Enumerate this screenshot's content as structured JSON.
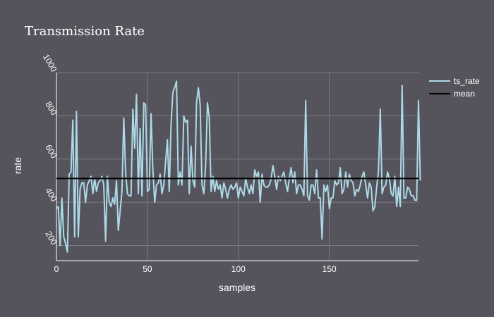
{
  "colors": {
    "background": "#55545c",
    "ts_rate": "#add8e6",
    "mean": "#000000",
    "grid": "#7b7a80",
    "text": "#ffffff"
  },
  "chart_data": {
    "type": "line",
    "title": "Transmission Rate",
    "xlabel": "samples",
    "ylabel": "rate",
    "xlim": [
      0,
      199
    ],
    "ylim": [
      130,
      1000
    ],
    "xticks": [
      0,
      50,
      100,
      150
    ],
    "yticks": [
      200,
      400,
      600,
      800,
      1000
    ],
    "grid": true,
    "legend_position": "top-right",
    "series": [
      {
        "name": "ts_rate",
        "values": [
          370,
          380,
          200,
          420,
          240,
          210,
          170,
          530,
          540,
          780,
          240,
          820,
          240,
          460,
          490,
          490,
          400,
          480,
          500,
          520,
          440,
          510,
          450,
          490,
          500,
          520,
          480,
          220,
          520,
          400,
          380,
          420,
          390,
          500,
          270,
          360,
          450,
          790,
          540,
          440,
          430,
          430,
          830,
          650,
          900,
          440,
          740,
          430,
          860,
          850,
          450,
          460,
          810,
          550,
          400,
          480,
          490,
          530,
          440,
          480,
          590,
          690,
          450,
          760,
          910,
          930,
          960,
          480,
          540,
          480,
          800,
          770,
          780,
          440,
          660,
          500,
          470,
          860,
          930,
          850,
          480,
          440,
          570,
          860,
          790,
          450,
          520,
          450,
          500,
          460,
          480,
          420,
          490,
          460,
          420,
          460,
          480,
          460,
          470,
          490,
          420,
          470,
          450,
          430,
          510,
          470,
          440,
          480,
          440,
          550,
          520,
          540,
          400,
          530,
          480,
          470,
          470,
          480,
          510,
          570,
          520,
          460,
          520,
          500,
          520,
          540,
          490,
          450,
          510,
          560,
          490,
          540,
          440,
          480,
          480,
          460,
          430,
          870,
          430,
          410,
          480,
          480,
          440,
          550,
          420,
          420,
          230,
          480,
          450,
          480,
          370,
          420,
          420,
          500,
          480,
          490,
          560,
          440,
          460,
          540,
          470,
          530,
          500,
          490,
          430,
          460,
          450,
          480,
          520,
          540,
          480,
          420,
          490,
          470,
          360,
          380,
          470,
          540,
          830,
          440,
          470,
          480,
          540,
          510,
          440,
          430,
          520,
          380,
          470,
          380,
          940,
          420,
          420,
          470,
          460,
          430,
          430,
          410,
          410,
          870,
          500
        ]
      },
      {
        "name": "mean",
        "values": [
          510,
          510
        ]
      }
    ]
  }
}
